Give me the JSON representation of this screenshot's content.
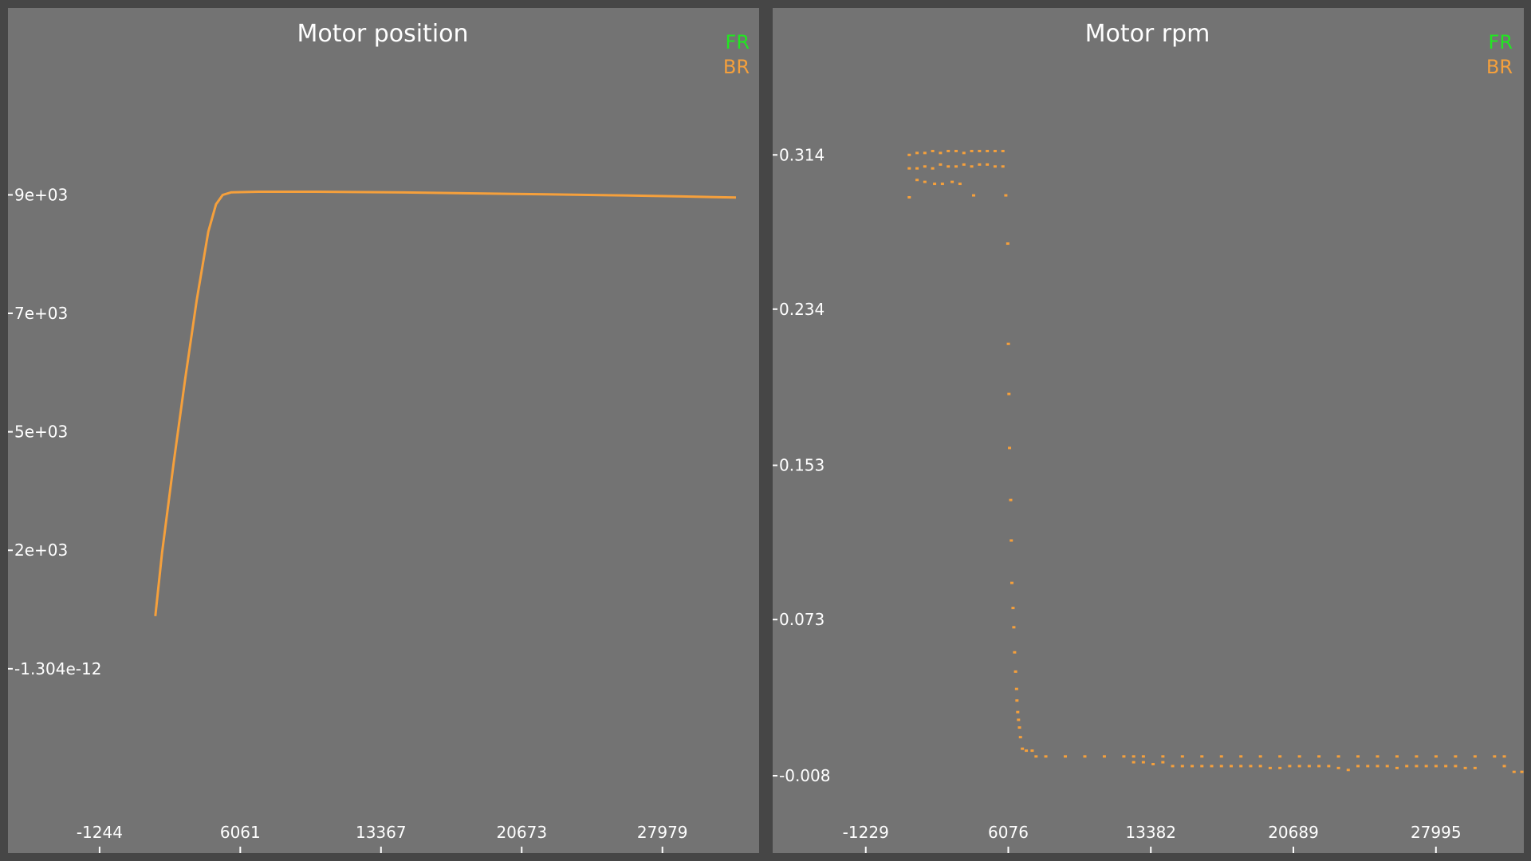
{
  "colors": {
    "background": "#464646",
    "plot_background": "#737373",
    "text": "#ffffff",
    "FR": "#22e622",
    "BR": "#f5a03c"
  },
  "chart_data": [
    {
      "type": "scatter",
      "title": "Motor position",
      "xlabel": "",
      "ylabel": "",
      "legend": {
        "placement": "top-right",
        "entries": [
          "FR",
          "BR"
        ]
      },
      "grid": false,
      "x_ticks": [
        "-1244",
        "6061",
        "13367",
        "20673",
        "27979"
      ],
      "x_tick_values": [
        -1244,
        6061,
        13367,
        20673,
        27979
      ],
      "y_ticks": [
        "-1.304e-12",
        "2e+03",
        "5e+03",
        "7e+03",
        "9e+03"
      ],
      "y_tick_values": [
        0,
        2250,
        4500,
        6750,
        9000
      ],
      "xlim": [
        -6000,
        33000
      ],
      "ylim": [
        -3500,
        12550
      ],
      "series": [
        {
          "name": "BR",
          "color": "#f5a03c",
          "points": [
            [
              1650,
              1000
            ],
            [
              2000,
              2200
            ],
            [
              2600,
              3900
            ],
            [
              3200,
              5500
            ],
            [
              3800,
              7000
            ],
            [
              4400,
              8300
            ],
            [
              4800,
              8820
            ],
            [
              5150,
              9000
            ],
            [
              5600,
              9050
            ],
            [
              7000,
              9060
            ],
            [
              10000,
              9060
            ],
            [
              14000,
              9050
            ],
            [
              18000,
              9030
            ],
            [
              22000,
              9010
            ],
            [
              26000,
              8990
            ],
            [
              29000,
              8970
            ],
            [
              31800,
              8950
            ]
          ]
        }
      ]
    },
    {
      "type": "scatter",
      "title": "Motor rpm",
      "xlabel": "",
      "ylabel": "",
      "legend": {
        "placement": "top-right",
        "entries": [
          "FR",
          "BR"
        ]
      },
      "grid": false,
      "x_ticks": [
        "-1229",
        "6076",
        "13382",
        "20689",
        "27995"
      ],
      "x_tick_values": [
        -1229,
        6076,
        13382,
        20689,
        27995
      ],
      "y_ticks": [
        "-0.008",
        "0.073",
        "0.153",
        "0.234",
        "0.314"
      ],
      "y_tick_values": [
        -0.008,
        0.073,
        0.153,
        0.234,
        0.314
      ],
      "xlim": [
        -6000,
        32500
      ],
      "ylim": [
        -0.0481,
        0.3902
      ],
      "series": [
        {
          "name": "BR",
          "color": "#f5a03c",
          "points": [
            [
              1000,
              0.314
            ],
            [
              1400,
              0.315
            ],
            [
              1800,
              0.315
            ],
            [
              2200,
              0.316
            ],
            [
              2600,
              0.315
            ],
            [
              3000,
              0.316
            ],
            [
              3400,
              0.316
            ],
            [
              3800,
              0.315
            ],
            [
              4200,
              0.316
            ],
            [
              4600,
              0.316
            ],
            [
              5000,
              0.316
            ],
            [
              5400,
              0.316
            ],
            [
              5800,
              0.316
            ],
            [
              1000,
              0.307
            ],
            [
              1400,
              0.307
            ],
            [
              1800,
              0.308
            ],
            [
              2200,
              0.307
            ],
            [
              2600,
              0.309
            ],
            [
              3000,
              0.308
            ],
            [
              3400,
              0.308
            ],
            [
              3800,
              0.309
            ],
            [
              4200,
              0.308
            ],
            [
              4600,
              0.309
            ],
            [
              5000,
              0.309
            ],
            [
              5400,
              0.308
            ],
            [
              5800,
              0.308
            ],
            [
              1000,
              0.292
            ],
            [
              1400,
              0.301
            ],
            [
              1800,
              0.3
            ],
            [
              2300,
              0.299
            ],
            [
              2700,
              0.299
            ],
            [
              3200,
              0.3
            ],
            [
              3600,
              0.299
            ],
            [
              4300,
              0.293
            ],
            [
              5950,
              0.293
            ],
            [
              6050,
              0.268
            ],
            [
              6080,
              0.216
            ],
            [
              6110,
              0.19
            ],
            [
              6140,
              0.162
            ],
            [
              6200,
              0.135
            ],
            [
              6230,
              0.114
            ],
            [
              6260,
              0.092
            ],
            [
              6320,
              0.079
            ],
            [
              6360,
              0.069
            ],
            [
              6400,
              0.056
            ],
            [
              6450,
              0.046
            ],
            [
              6500,
              0.037
            ],
            [
              6520,
              0.031
            ],
            [
              6560,
              0.025
            ],
            [
              6600,
              0.021
            ],
            [
              6650,
              0.017
            ],
            [
              6700,
              0.012
            ],
            [
              6800,
              0.006
            ],
            [
              7000,
              0.005
            ],
            [
              7300,
              0.005
            ],
            [
              7500,
              0.002
            ],
            [
              8000,
              0.002
            ],
            [
              9000,
              0.002
            ],
            [
              10000,
              0.002
            ],
            [
              11000,
              0.002
            ],
            [
              12000,
              0.002
            ],
            [
              12500,
              0.002
            ],
            [
              13000,
              0.002
            ],
            [
              14000,
              0.002
            ],
            [
              15000,
              0.002
            ],
            [
              16000,
              0.002
            ],
            [
              17000,
              0.002
            ],
            [
              18000,
              0.002
            ],
            [
              19000,
              0.002
            ],
            [
              20000,
              0.002
            ],
            [
              21000,
              0.002
            ],
            [
              22000,
              0.002
            ],
            [
              23000,
              0.002
            ],
            [
              24000,
              0.002
            ],
            [
              25000,
              0.002
            ],
            [
              26000,
              0.002
            ],
            [
              27000,
              0.002
            ],
            [
              28000,
              0.002
            ],
            [
              29000,
              0.002
            ],
            [
              30000,
              0.002
            ],
            [
              31000,
              0.002
            ],
            [
              31500,
              0.002
            ],
            [
              12500,
              -0.001
            ],
            [
              13000,
              -0.001
            ],
            [
              13500,
              -0.002
            ],
            [
              14000,
              -0.001
            ],
            [
              14500,
              -0.003
            ],
            [
              15000,
              -0.003
            ],
            [
              15500,
              -0.003
            ],
            [
              16000,
              -0.003
            ],
            [
              16500,
              -0.003
            ],
            [
              17000,
              -0.003
            ],
            [
              17500,
              -0.003
            ],
            [
              18000,
              -0.003
            ],
            [
              18500,
              -0.003
            ],
            [
              19000,
              -0.003
            ],
            [
              19500,
              -0.004
            ],
            [
              20000,
              -0.004
            ],
            [
              20500,
              -0.003
            ],
            [
              21000,
              -0.003
            ],
            [
              21500,
              -0.003
            ],
            [
              22000,
              -0.003
            ],
            [
              22500,
              -0.003
            ],
            [
              23000,
              -0.004
            ],
            [
              23500,
              -0.005
            ],
            [
              24000,
              -0.003
            ],
            [
              24500,
              -0.003
            ],
            [
              25000,
              -0.003
            ],
            [
              25500,
              -0.003
            ],
            [
              26000,
              -0.004
            ],
            [
              26500,
              -0.003
            ],
            [
              27000,
              -0.003
            ],
            [
              27500,
              -0.003
            ],
            [
              28000,
              -0.003
            ],
            [
              28500,
              -0.003
            ],
            [
              29000,
              -0.003
            ],
            [
              29500,
              -0.004
            ],
            [
              30000,
              -0.004
            ],
            [
              31500,
              -0.003
            ],
            [
              32000,
              -0.006
            ],
            [
              32400,
              -0.006
            ]
          ]
        }
      ]
    }
  ]
}
